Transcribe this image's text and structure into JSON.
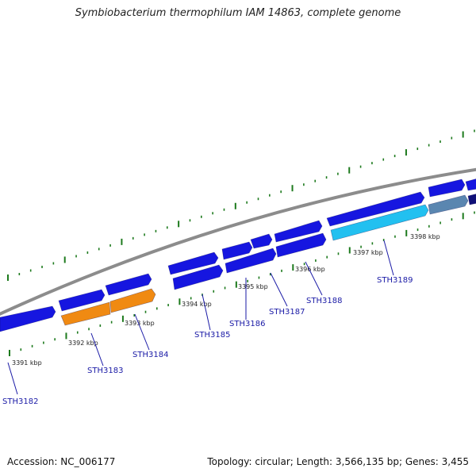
{
  "title": "Symbiobacterium thermophilum IAM 14863, complete genome",
  "footer": {
    "accession": "Accession: NC_006177",
    "summary": "Topology: circular; Length: 3,566,135 bp; Genes: 3,455"
  },
  "colors": {
    "backbone": "#8c8c8c",
    "tick": "#1d7a1d",
    "gene_blue": "#1616e0",
    "gene_orange": "#f08a12",
    "gene_cyan": "#22c0f0",
    "gene_steel": "#5a86b0",
    "gene_navy": "#101078",
    "label": "#1a1aa6"
  },
  "scale": {
    "labels": [
      "3391 kbp",
      "3392 kbp",
      "3393 kbp",
      "3394 kbp",
      "3395 kbp",
      "3396 kbp",
      "3397 kbp",
      "3398 kbp"
    ]
  },
  "genes": [
    {
      "label": "STH3182"
    },
    {
      "label": "STH3183"
    },
    {
      "label": "STH3184"
    },
    {
      "label": "STH3185"
    },
    {
      "label": "STH3186"
    },
    {
      "label": "STH3187"
    },
    {
      "label": "STH3188"
    },
    {
      "label": "STH3189"
    }
  ]
}
